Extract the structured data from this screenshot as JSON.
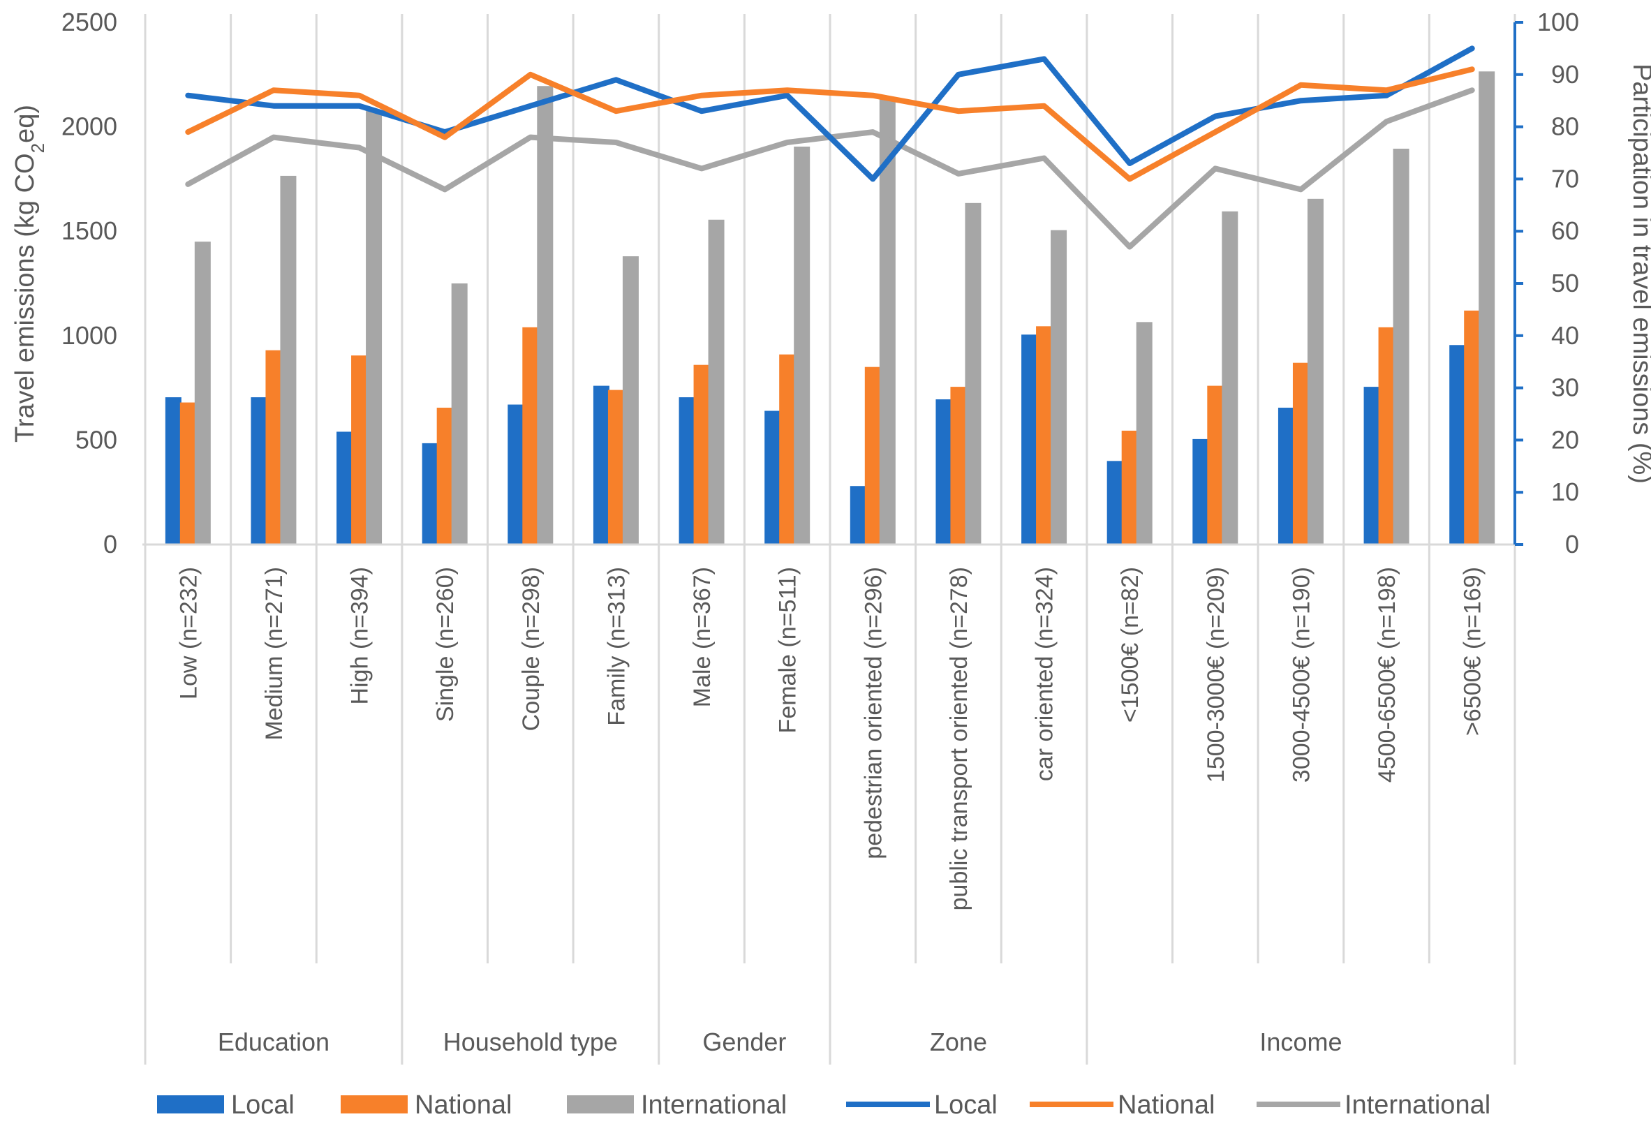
{
  "chart_data": {
    "type": "bar",
    "title": "",
    "ylabel": "Travel emissions (kg CO2eq)",
    "ylabel_parts": {
      "before": "Travel emissions (kg CO",
      "sub": "2",
      "after": "eq)"
    },
    "ylabel_right": "Participation in travel emissions (%)",
    "ylim": [
      0,
      2500
    ],
    "ylim_right": [
      0,
      100
    ],
    "yticks": [
      "0",
      "500",
      "1000",
      "1500",
      "2000",
      "2500"
    ],
    "yticks_right": [
      "0",
      "10",
      "20",
      "30",
      "40",
      "50",
      "60",
      "70",
      "80",
      "90",
      "100"
    ],
    "colors": {
      "local": "#1f6fc6",
      "national": "#f7802a",
      "international": "#a6a6a6",
      "axis_right": "#1f6fc6",
      "grid": "#d9d9d9",
      "text": "#595959"
    },
    "categories": [
      "Low (n=232)",
      "Medium (n=271)",
      "High (n=394)",
      "Single (n=260)",
      "Couple (n=298)",
      "Family (n=313)",
      "Male (n=367)",
      "Female (n=511)",
      "pedestrian oriented (n=296)",
      "public transport oriented (n=278)",
      "car oriented (n=324)",
      "<1500€ (n=82)",
      "1500-3000€ (n=209)",
      "3000-4500€ (n=190)",
      "4500-6500€ (n=198)",
      ">6500€ (n=169)"
    ],
    "groups": [
      {
        "label": "Education",
        "start": 0,
        "end": 2
      },
      {
        "label": "Household type",
        "start": 3,
        "end": 5
      },
      {
        "label": "Gender",
        "start": 6,
        "end": 7
      },
      {
        "label": "Zone",
        "start": 8,
        "end": 10
      },
      {
        "label": "Income",
        "start": 11,
        "end": 15
      }
    ],
    "bar_series": [
      {
        "name": "Local",
        "key": "local",
        "values": [
          705,
          705,
          540,
          485,
          670,
          760,
          705,
          640,
          280,
          695,
          1005,
          400,
          505,
          655,
          755,
          955
        ]
      },
      {
        "name": "National",
        "key": "national",
        "values": [
          680,
          930,
          905,
          655,
          1040,
          740,
          860,
          910,
          850,
          755,
          1045,
          545,
          760,
          870,
          1040,
          1120
        ]
      },
      {
        "name": "International",
        "key": "international",
        "values": [
          1450,
          1765,
          2075,
          1250,
          2195,
          1380,
          1555,
          1905,
          2140,
          1635,
          1505,
          1065,
          1595,
          1655,
          1895,
          2265
        ]
      }
    ],
    "line_series": [
      {
        "name": "Local",
        "key": "local",
        "axis": "right",
        "values": [
          86,
          84,
          84,
          79,
          84,
          89,
          83,
          86,
          70,
          90,
          93,
          73,
          82,
          85,
          86,
          95
        ]
      },
      {
        "name": "National",
        "key": "national",
        "axis": "right",
        "values": [
          79,
          87,
          86,
          78,
          90,
          83,
          86,
          87,
          86,
          83,
          84,
          70,
          79,
          88,
          87,
          91
        ]
      },
      {
        "name": "International",
        "key": "international",
        "axis": "right",
        "values": [
          69,
          78,
          76,
          68,
          78,
          77,
          72,
          77,
          79,
          71,
          74,
          57,
          72,
          68,
          81,
          87
        ]
      }
    ],
    "legend": [
      {
        "label": "Local",
        "kind": "bar",
        "key": "local"
      },
      {
        "label": "National",
        "kind": "bar",
        "key": "national"
      },
      {
        "label": "International",
        "kind": "bar",
        "key": "international"
      },
      {
        "label": "Local",
        "kind": "line",
        "key": "local"
      },
      {
        "label": "National",
        "kind": "line",
        "key": "national"
      },
      {
        "label": "International",
        "kind": "line",
        "key": "international"
      }
    ],
    "legend_position": "bottom"
  }
}
